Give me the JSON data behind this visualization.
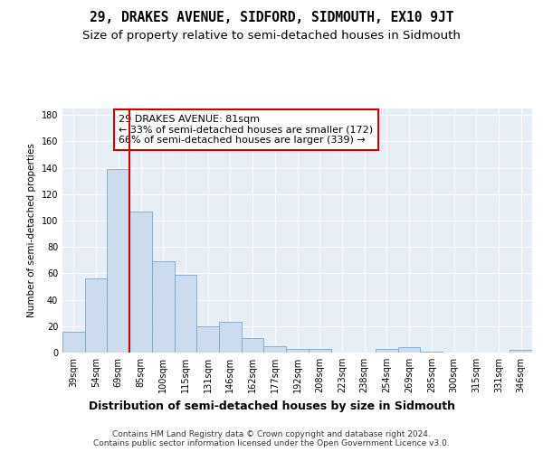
{
  "title": "29, DRAKES AVENUE, SIDFORD, SIDMOUTH, EX10 9JT",
  "subtitle": "Size of property relative to semi-detached houses in Sidmouth",
  "xlabel": "Distribution of semi-detached houses by size in Sidmouth",
  "ylabel": "Number of semi-detached properties",
  "categories": [
    "39sqm",
    "54sqm",
    "69sqm",
    "85sqm",
    "100sqm",
    "115sqm",
    "131sqm",
    "146sqm",
    "162sqm",
    "177sqm",
    "192sqm",
    "208sqm",
    "223sqm",
    "238sqm",
    "254sqm",
    "269sqm",
    "285sqm",
    "300sqm",
    "315sqm",
    "331sqm",
    "346sqm"
  ],
  "values": [
    16,
    56,
    139,
    107,
    69,
    59,
    20,
    23,
    11,
    5,
    3,
    3,
    0,
    0,
    3,
    4,
    1,
    0,
    0,
    0,
    2
  ],
  "bar_color": "#ccdcee",
  "bar_edge_color": "#7aa8cc",
  "vline_color": "#cc0000",
  "vline_x_index": 3,
  "annotation_text": "29 DRAKES AVENUE: 81sqm\n← 33% of semi-detached houses are smaller (172)\n66% of semi-detached houses are larger (339) →",
  "annotation_box_color": "#ffffff",
  "annotation_border_color": "#cc0000",
  "background_color": "#ffffff",
  "plot_background_color": "#e8eef5",
  "grid_color": "#ffffff",
  "ylim": [
    0,
    185
  ],
  "yticks": [
    0,
    20,
    40,
    60,
    80,
    100,
    120,
    140,
    160,
    180
  ],
  "footer": "Contains HM Land Registry data © Crown copyright and database right 2024.\nContains public sector information licensed under the Open Government Licence v3.0.",
  "title_fontsize": 10.5,
  "subtitle_fontsize": 9.5,
  "xlabel_fontsize": 9,
  "ylabel_fontsize": 7.5,
  "tick_fontsize": 7,
  "annotation_fontsize": 8,
  "footer_fontsize": 6.5
}
